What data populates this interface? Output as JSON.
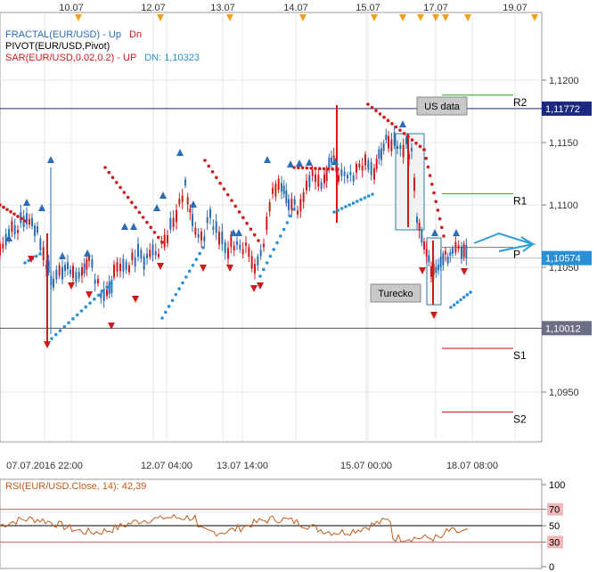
{
  "chart_data": {
    "type": "candlestick",
    "symbol": "EUR/USD",
    "legend": [
      {
        "text": "FRACTAL(EUR/USD)  -  Up",
        "color": "#2a6db5"
      },
      {
        "text": "Dn",
        "color": "#d0191b"
      },
      {
        "text": "PIVOT(EUR/USD,Pivot)",
        "color": "#000000"
      },
      {
        "text": "SAR(EUR/USD,0.02,0.2)  -  UP",
        "color": "#d0191b"
      },
      {
        "text": "DN: 1,10323",
        "color": "#2a90d6"
      }
    ],
    "top_dates": [
      "10.07",
      "12.07",
      "13.07",
      "14.07",
      "15.07",
      "17.07",
      "19.07"
    ],
    "x_time_labels": [
      "07.07.2016 22:00",
      "12.07 04:00",
      "13.07 14:00",
      "15.07 00:00",
      "18.07 08:00"
    ],
    "y_ticks": [
      "1,1200",
      "1,1150",
      "1,1100",
      "1,1050",
      "1,0950"
    ],
    "ylim": [
      1.0925,
      1.1232
    ],
    "horizontal_lines": [
      {
        "value": 1.11772,
        "label": "1,11772",
        "color": "#1a2a80"
      },
      {
        "value": 1.10012,
        "label": "1,10012",
        "color": "#555555"
      }
    ],
    "current_price": {
      "value": 1.10574,
      "label": "1,10574",
      "color": "#2a90d6"
    },
    "pivots": [
      {
        "name": "R2",
        "value": 1.1188
      },
      {
        "name": "R1",
        "value": 1.1109
      },
      {
        "name": "P",
        "value": 1.1066
      },
      {
        "name": "S1",
        "value": 1.0985
      },
      {
        "name": "S2",
        "value": 1.0934
      }
    ],
    "annotations": [
      "US data",
      "Turecko"
    ],
    "rsi": {
      "label": "RSI(EUR/USD.Close, 14): 42,39",
      "value": 42.39,
      "levels": [
        70,
        50,
        30
      ],
      "axis": [
        "100",
        "70",
        "50",
        "30",
        "0"
      ],
      "ylim": [
        0,
        100
      ]
    }
  }
}
